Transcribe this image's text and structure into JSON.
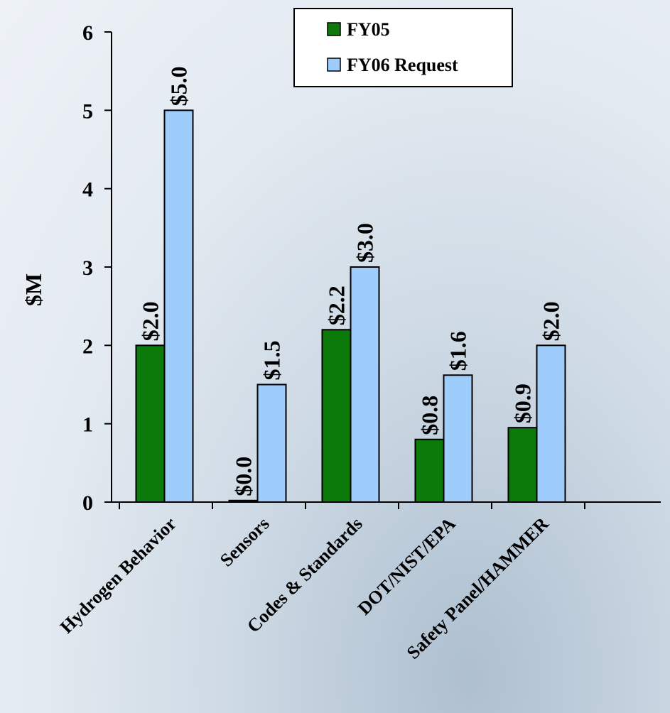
{
  "chart_data": {
    "type": "bar",
    "title": "",
    "xlabel": "",
    "ylabel": "$M",
    "ylim": [
      0,
      6
    ],
    "yticks": [
      0,
      1,
      2,
      3,
      4,
      5,
      6
    ],
    "grid": false,
    "legend_position": "top-right",
    "categories": [
      "Hydrogen Behavior",
      "Sensors",
      "Codes & Standards",
      "DOT/NIST/EPA",
      "Safety Panel/HAMMER"
    ],
    "series": [
      {
        "name": "FY05",
        "color": "#0b7a0b",
        "values": [
          2.0,
          0.02,
          2.2,
          0.8,
          0.95
        ],
        "labels": [
          "$2.0",
          "$0.0",
          "$2.2",
          "$0.8",
          "$0.9"
        ]
      },
      {
        "name": "FY06 Request",
        "color": "#9fcdfb",
        "values": [
          5.0,
          1.5,
          3.0,
          1.62,
          2.0
        ],
        "labels": [
          "$5.0",
          "$1.5",
          "$3.0",
          "$1.6",
          "$2.0"
        ]
      }
    ]
  }
}
